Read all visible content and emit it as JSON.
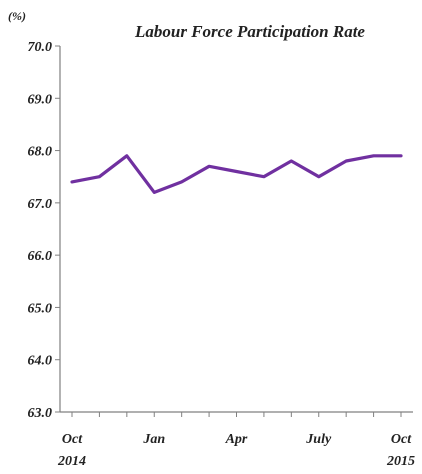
{
  "chart_data": {
    "type": "line",
    "title": "Labour Force Participation Rate",
    "y_unit_label": "(%)",
    "ylim": [
      63.0,
      70.0
    ],
    "y_ticks": [
      "63.0",
      "64.0",
      "65.0",
      "66.0",
      "67.0",
      "68.0",
      "69.0",
      "70.0"
    ],
    "x_tick_labels": [
      {
        "month": "Oct",
        "year": "2014"
      },
      {
        "month": "Jan",
        "year": ""
      },
      {
        "month": "Apr",
        "year": ""
      },
      {
        "month": "July",
        "year": ""
      },
      {
        "month": "Oct",
        "year": "2015"
      }
    ],
    "x": [
      "Oct 2014",
      "Nov 2014",
      "Dec 2014",
      "Jan 2015",
      "Feb 2015",
      "Mar 2015",
      "Apr 2015",
      "May 2015",
      "Jun 2015",
      "Jul 2015",
      "Aug 2015",
      "Sep 2015",
      "Oct 2015"
    ],
    "series": [
      {
        "values": [
          67.4,
          67.5,
          67.9,
          67.2,
          67.4,
          67.7,
          67.6,
          67.5,
          67.8,
          67.5,
          67.8,
          67.9,
          67.9
        ],
        "color": "#7030A0"
      }
    ],
    "grid": false,
    "legend": "none"
  }
}
